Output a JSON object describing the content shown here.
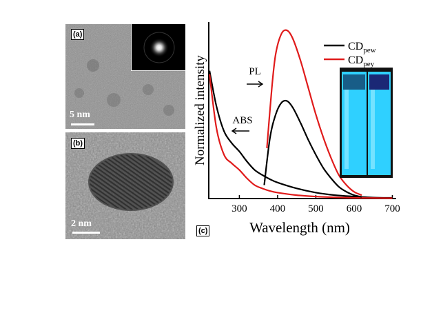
{
  "panels": {
    "a": {
      "label": "(a)",
      "scale": "5 nm"
    },
    "b": {
      "label": "(b)",
      "scale": "2 nm"
    },
    "c": {
      "label": "(c)"
    }
  },
  "chart_data": {
    "type": "line",
    "xlabel": "Wavelength (nm)",
    "ylabel": "Normalized intensity",
    "xlim": [
      220,
      710
    ],
    "ylim": [
      0,
      1.05
    ],
    "x_ticks": [
      300,
      400,
      500,
      600,
      700
    ],
    "y_ticks_shown": false,
    "annotations": [
      {
        "text": "PL",
        "arrow": "right",
        "near_x": 345,
        "near_y": 0.6
      },
      {
        "text": "ABS",
        "arrow": "left",
        "near_x": 370,
        "near_y": 0.33
      }
    ],
    "legend": {
      "placement": "top-right",
      "entries": [
        {
          "base": "CD",
          "sub": "pew",
          "color": "#000000"
        },
        {
          "base": "CD",
          "sub": "pey",
          "color": "#e01b1b"
        }
      ]
    },
    "series": [
      {
        "name": "CDpew ABS",
        "legend_entry": 0,
        "color": "#000000",
        "x": [
          222,
          240,
          260,
          280,
          300,
          320,
          340,
          360,
          380,
          400,
          450,
          500,
          550,
          600,
          650,
          700
        ],
        "y": [
          0.76,
          0.55,
          0.4,
          0.33,
          0.28,
          0.22,
          0.17,
          0.14,
          0.115,
          0.095,
          0.06,
          0.035,
          0.02,
          0.012,
          0.006,
          0.004
        ]
      },
      {
        "name": "CDpey ABS",
        "legend_entry": 1,
        "color": "#e01b1b",
        "x": [
          222,
          240,
          260,
          280,
          300,
          320,
          340,
          360,
          380,
          400,
          450,
          500,
          550,
          600,
          650,
          700
        ],
        "y": [
          0.74,
          0.42,
          0.26,
          0.21,
          0.17,
          0.12,
          0.08,
          0.06,
          0.045,
          0.035,
          0.02,
          0.012,
          0.007,
          0.004,
          0.003,
          0.002
        ]
      },
      {
        "name": "CDpew PL",
        "legend_entry": 0,
        "color": "#000000",
        "x": [
          365,
          380,
          395,
          410,
          425,
          440,
          460,
          480,
          500,
          520,
          540,
          560,
          580,
          600,
          620
        ],
        "y": [
          0.08,
          0.36,
          0.5,
          0.57,
          0.58,
          0.54,
          0.45,
          0.35,
          0.26,
          0.18,
          0.12,
          0.07,
          0.04,
          0.02,
          0.01
        ]
      },
      {
        "name": "CDpey PL",
        "legend_entry": 1,
        "color": "#e01b1b",
        "x": [
          372,
          385,
          395,
          410,
          425,
          440,
          460,
          480,
          500,
          520,
          540,
          560,
          580,
          600,
          620
        ],
        "y": [
          0.3,
          0.66,
          0.86,
          0.98,
          1.0,
          0.95,
          0.82,
          0.66,
          0.5,
          0.36,
          0.24,
          0.14,
          0.08,
          0.04,
          0.02
        ]
      }
    ]
  },
  "colors": {
    "cuvette_glow": "#2fd0ff",
    "cuvette_dark": "#1a1f6e",
    "micrograph_gray": "#8a8a8a"
  }
}
